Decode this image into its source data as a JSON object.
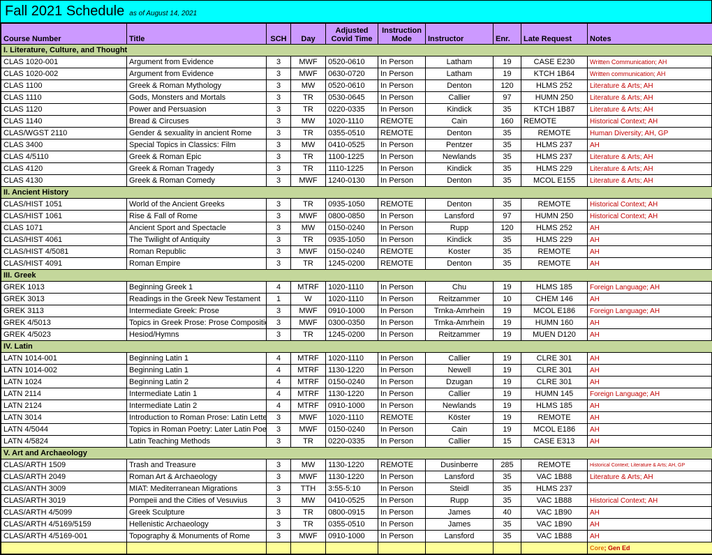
{
  "colors": {
    "title_bg": "#00ffff",
    "header_bg": "#cc99ff",
    "section_bg": "#c4d79b",
    "footer_bg": "#ffff99"
  },
  "title": {
    "main": "Fall 2021 Schedule",
    "sub": "as of August 14, 2021"
  },
  "columns": {
    "course": "Course Number",
    "title": "Title",
    "sch": "SCH",
    "day": "Day",
    "time": "Adjusted Covid Time",
    "mode": "Instruction Mode",
    "instructor": "Instructor",
    "enr": "Enr.",
    "late": "Late Request",
    "notes": "Notes"
  },
  "col_widths": {
    "course": 180,
    "title": 200,
    "sch": 35,
    "day": 50,
    "time": 75,
    "mode": 68,
    "instructor": 97,
    "enr": 40,
    "late": 95,
    "notes": 180
  },
  "sections": [
    {
      "name": "I. Literature, Culture, and Thought",
      "rows": [
        {
          "course": "CLAS 1020-001",
          "title": "Argument from Evidence",
          "sch": "3",
          "day": "MWF",
          "time": "0520-0610",
          "mode": "In Person",
          "instructor": "Latham",
          "enr": "19",
          "late": "CASE E230",
          "notes": "Written Communication; AH",
          "notes_color": "red",
          "notes_size": 9
        },
        {
          "course": "CLAS 1020-002",
          "title": "Argument from Evidence",
          "sch": "3",
          "day": "MWF",
          "time": "0630-0720",
          "mode": "In Person",
          "instructor": "Latham",
          "enr": "19",
          "late": "KTCH 1B64",
          "notes": "Written communication; AH",
          "notes_color": "red",
          "notes_size": 9
        },
        {
          "course": "CLAS 1100",
          "title": "Greek & Roman Mythology",
          "sch": "3",
          "day": "MW",
          "time": "0520-0610",
          "mode": "In Person",
          "instructor": "Denton",
          "enr": "120",
          "late": "HLMS 252",
          "notes": "Literature & Arts; AH",
          "notes_color": "red"
        },
        {
          "course": "CLAS 1110",
          "title": "Gods, Monsters and Mortals",
          "sch": "3",
          "day": "TR",
          "time": "0530-0645",
          "mode": "In Person",
          "instructor": "Callier",
          "enr": "97",
          "late": "HUMN 250",
          "notes": "Literature & Arts; AH",
          "notes_color": "red"
        },
        {
          "course": "CLAS 1120",
          "title": "Power and Persuasion",
          "sch": "3",
          "day": "TR",
          "time": "0220-0335",
          "mode": "In Person",
          "instructor": "Kindick",
          "enr": "35",
          "late": "KTCH 1B87",
          "notes": "Literature & Arts; AH",
          "notes_color": "red"
        },
        {
          "course": "CLAS 1140",
          "title": "Bread & Circuses",
          "sch": "3",
          "day": "MW",
          "time": "1020-1110",
          "mode": "REMOTE",
          "instructor": "Cain",
          "enr": "160",
          "late": "REMOTE",
          "late_align": "left",
          "notes": "Historical Context; AH",
          "notes_color": "red"
        },
        {
          "course": "CLAS/WGST 2110",
          "title": "Gender & sexuality in ancient Rome",
          "sch": "3",
          "day": "TR",
          "time": "0355-0510",
          "mode": "REMOTE",
          "instructor": "Denton",
          "enr": "35",
          "late": "REMOTE",
          "notes": "Human Diversity; AH, GP",
          "notes_color": "red"
        },
        {
          "course": "CLAS 3400",
          "title": "Special Topics in Classics: Film",
          "sch": "3",
          "day": "MW",
          "time": "0410-0525",
          "mode": "In Person",
          "instructor": "Pentzer",
          "enr": "35",
          "late": "HLMS 237",
          "notes": "AH",
          "notes_color": "red"
        },
        {
          "course": "CLAS 4/5110",
          "title": "Greek & Roman Epic",
          "sch": "3",
          "day": "TR",
          "time": "1100-1225",
          "mode": "In Person",
          "instructor": "Newlands",
          "enr": "35",
          "late": "HLMS 237",
          "notes": "Literature & Arts; AH",
          "notes_color": "red"
        },
        {
          "course": "CLAS 4120",
          "title": "Greek & Roman Tragedy",
          "sch": "3",
          "day": "TR",
          "time": "1110-1225",
          "mode": "In Person",
          "instructor": "Kindick",
          "enr": "35",
          "late": "HLMS 229",
          "notes": "Literature & Arts; AH",
          "notes_color": "red"
        },
        {
          "course": "CLAS 4130",
          "title": "Greek & Roman Comedy",
          "sch": "3",
          "day": "MWF",
          "time": "1240-0130",
          "mode": "In Person",
          "instructor": "Denton",
          "enr": "35",
          "late": "MCOL E155",
          "notes": "Literature & Arts; AH",
          "notes_color": "red"
        }
      ]
    },
    {
      "name": "II. Ancient History",
      "rows": [
        {
          "course": "CLAS/HIST 1051",
          "title": "World of the Ancient Greeks",
          "sch": "3",
          "day": "TR",
          "time": "0935-1050",
          "mode": "REMOTE",
          "instructor": "Denton",
          "enr": "35",
          "late": "REMOTE",
          "notes": "Historical Context; AH",
          "notes_color": "red"
        },
        {
          "course": "CLAS/HIST 1061",
          "title": "Rise & Fall of Rome",
          "sch": "3",
          "day": "MWF",
          "time": "0800-0850",
          "mode": "In Person",
          "instructor": "Lansford",
          "enr": "97",
          "late": "HUMN 250",
          "notes": "Historical Context; AH",
          "notes_color": "red"
        },
        {
          "course": "CLAS 1071",
          "title": "Ancient Sport and Spectacle",
          "sch": "3",
          "day": "MW",
          "time": "0150-0240",
          "mode": "In Person",
          "instructor": "Rupp",
          "enr": "120",
          "late": "HLMS 252",
          "notes": "AH",
          "notes_color": "red"
        },
        {
          "course": "CLAS/HIST 4061",
          "title": "The Twilight of Antiquity",
          "sch": "3",
          "day": "TR",
          "time": "0935-1050",
          "mode": "In Person",
          "instructor": "Kindick",
          "enr": "35",
          "late": "HLMS 229",
          "notes": "AH",
          "notes_color": "red"
        },
        {
          "course": "CLAS/HIST 4/5081",
          "title": "Roman Republic",
          "sch": "3",
          "day": "MWF",
          "time": "0150-0240",
          "mode": "REMOTE",
          "instructor": "Koster",
          "enr": "35",
          "late": "REMOTE",
          "notes": "AH",
          "notes_color": "red"
        },
        {
          "course": "CLAS/HIST 4091",
          "title": "Roman Empire",
          "sch": "3",
          "day": "TR",
          "time": "1245-0200",
          "mode": "REMOTE",
          "instructor": "Denton",
          "enr": "35",
          "late": "REMOTE",
          "notes": "AH",
          "notes_color": "red"
        }
      ]
    },
    {
      "name": "III. Greek",
      "rows": [
        {
          "course": "GREK 1013",
          "title": "Beginning Greek 1",
          "sch": "4",
          "day": "MTRF",
          "time": "1020-1110",
          "mode": "In Person",
          "instructor": "Chu",
          "enr": "19",
          "late": "HLMS 185",
          "notes": "Foreign Language; AH",
          "notes_color": "red",
          "notes_size": 10
        },
        {
          "course": "GREK 3013",
          "title": "Readings in the Greek New Testament",
          "sch": "1",
          "day": "W",
          "time": "1020-1110",
          "mode": "In Person",
          "instructor": "Reitzammer",
          "enr": "10",
          "late": "CHEM 146",
          "notes": "AH",
          "notes_color": "red"
        },
        {
          "course": "GREK 3113",
          "title": "Intermediate Greek: Prose",
          "sch": "3",
          "day": "MWF",
          "time": "0910-1000",
          "mode": "In Person",
          "instructor": "Trnka-Amrhein",
          "enr": "19",
          "late": "MCOL E186",
          "notes": "Foreign Language; AH",
          "notes_color": "red",
          "notes_size": 10
        },
        {
          "course": "GREK 4/5013",
          "title": "Topics in Greek Prose: Prose Composition",
          "sch": "3",
          "day": "MWF",
          "time": "0300-0350",
          "mode": "In Person",
          "instructor": "Trnka-Amrhein",
          "enr": "19",
          "late": "HUMN 160",
          "notes": "AH",
          "notes_color": "red"
        },
        {
          "course": "GREK 4/5023",
          "title": "Hesiod/Hymns",
          "sch": "3",
          "day": "TR",
          "time": "1245-0200",
          "mode": "In Person",
          "instructor": "Reitzammer",
          "enr": "19",
          "late": "MUEN D120",
          "notes": "AH",
          "notes_color": "red"
        }
      ]
    },
    {
      "name": "IV. Latin",
      "rows": [
        {
          "course": "LATN 1014-001",
          "title": "Beginning Latin 1",
          "sch": "4",
          "day": "MTRF",
          "time": "1020-1110",
          "mode": "In Person",
          "instructor": "Callier",
          "enr": "19",
          "late": "CLRE 301",
          "notes": "AH",
          "notes_color": "red"
        },
        {
          "course": "LATN 1014-002",
          "title": "Beginning Latin 1",
          "sch": "4",
          "day": "MTRF",
          "time": "1130-1220",
          "mode": "In Person",
          "instructor": "Newell",
          "enr": "19",
          "late": "CLRE 301",
          "notes": "AH",
          "notes_color": "red"
        },
        {
          "course": "LATN 1024",
          "title": "Beginning Latin 2",
          "sch": "4",
          "day": "MTRF",
          "time": "0150-0240",
          "mode": "In Person",
          "instructor": "Dzugan",
          "enr": "19",
          "late": "CLRE 301",
          "notes": "AH",
          "notes_color": "red"
        },
        {
          "course": "LATN 2114",
          "title": "Intermediate Latin 1",
          "sch": "4",
          "day": "MTRF",
          "time": "1130-1220",
          "mode": "In Person",
          "instructor": "Callier",
          "enr": "19",
          "late": "HUMN 145",
          "notes": "Foreign Language; AH",
          "notes_color": "red",
          "notes_size": 10
        },
        {
          "course": "LATN 2124",
          "title": "Intermediate Latin 2",
          "sch": "4",
          "day": "MTRF",
          "time": "0910-1000",
          "mode": "In Person",
          "instructor": "Newlands",
          "enr": "19",
          "late": "HLMS 185",
          "notes": "AH",
          "notes_color": "red"
        },
        {
          "course": "LATN 3014",
          "title": "Introduction to Roman Prose: Latin Letters",
          "sch": "3",
          "day": "MWF",
          "time": "1020-1110",
          "mode": "REMOTE",
          "instructor": "Köster",
          "enr": "19",
          "late": "REMOTE",
          "notes": "AH",
          "notes_color": "red"
        },
        {
          "course": "LATN 4/5044",
          "title": "Topics in Roman Poetry: Later Latin Poetry",
          "sch": "3",
          "day": "MWF",
          "time": "0150-0240",
          "mode": "In Person",
          "instructor": "Cain",
          "enr": "19",
          "late": "MCOL E186",
          "notes": "AH",
          "notes_color": "red"
        },
        {
          "course": "LATN 4/5824",
          "title": "Latin Teaching Methods",
          "sch": "3",
          "day": "TR",
          "time": "0220-0335",
          "mode": "In Person",
          "instructor": "Callier",
          "enr": "15",
          "late": "CASE E313",
          "notes": "AH",
          "notes_color": "red"
        }
      ]
    },
    {
      "name": "V. Art and Archaeology",
      "rows": [
        {
          "course": "CLAS/ARTH 1509",
          "title": "Trash and Treasure",
          "sch": "3",
          "day": "MW",
          "time": "1130-1220",
          "mode": "REMOTE",
          "instructor": "Dusinberre",
          "enr": "285",
          "late": "REMOTE",
          "notes": "Historical Context; Literature & Arts; AH, GP",
          "notes_color": "red",
          "notes_size": 7
        },
        {
          "course": "CLAS/ARTH 2049",
          "title": "Roman Art & Archaeology",
          "sch": "3",
          "day": "MWF",
          "time": "1130-1220",
          "mode": "In Person",
          "instructor": "Lansford",
          "enr": "35",
          "late": "VAC 1B88",
          "notes": "Literature & Arts; AH",
          "notes_color": "red"
        },
        {
          "course": "CLAS/ANTH 3009",
          "title": "MIAT: Mediterranean Migrations",
          "sch": "3",
          "day": "TTH",
          "time": "3:55-5:10",
          "mode": "In Person",
          "instructor": "Steidl",
          "enr": "35",
          "late": "HLMS 237",
          "notes": "",
          "notes_color": "red"
        },
        {
          "course": "CLAS/ARTH 3019",
          "title": "Pompeii and the Cities of Vesuvius",
          "sch": "3",
          "day": "MW",
          "time": "0410-0525",
          "mode": "In Person",
          "instructor": "Rupp",
          "enr": "35",
          "late": "VAC 1B88",
          "notes": "Historical Context; AH",
          "notes_color": "red"
        },
        {
          "course": "CLAS/ARTH 4/5099",
          "title": "Greek Sculpture",
          "sch": "3",
          "day": "TR",
          "time": "0800-0915",
          "mode": "In Person",
          "instructor": "James",
          "enr": "40",
          "late": "VAC 1B90",
          "notes": "AH",
          "notes_color": "red"
        },
        {
          "course": "CLAS/ARTH 4/5169/5159",
          "title": "Hellenistic Archaeology",
          "sch": "3",
          "day": "TR",
          "time": "0355-0510",
          "mode": "In Person",
          "instructor": "James",
          "enr": "35",
          "late": "VAC 1B90",
          "notes": "AH",
          "notes_color": "red"
        },
        {
          "course": "CLAS/ARTH 4/5169-001",
          "title": "Topography & Monuments of Rome",
          "sch": "3",
          "day": "MWF",
          "time": "0910-1000",
          "mode": "In Person",
          "instructor": "Lansford",
          "enr": "35",
          "late": "VAC 1B88",
          "notes": "AH",
          "notes_color": "red"
        }
      ]
    }
  ],
  "footer": {
    "core": "Core",
    "gened": "; Gen Ed"
  }
}
